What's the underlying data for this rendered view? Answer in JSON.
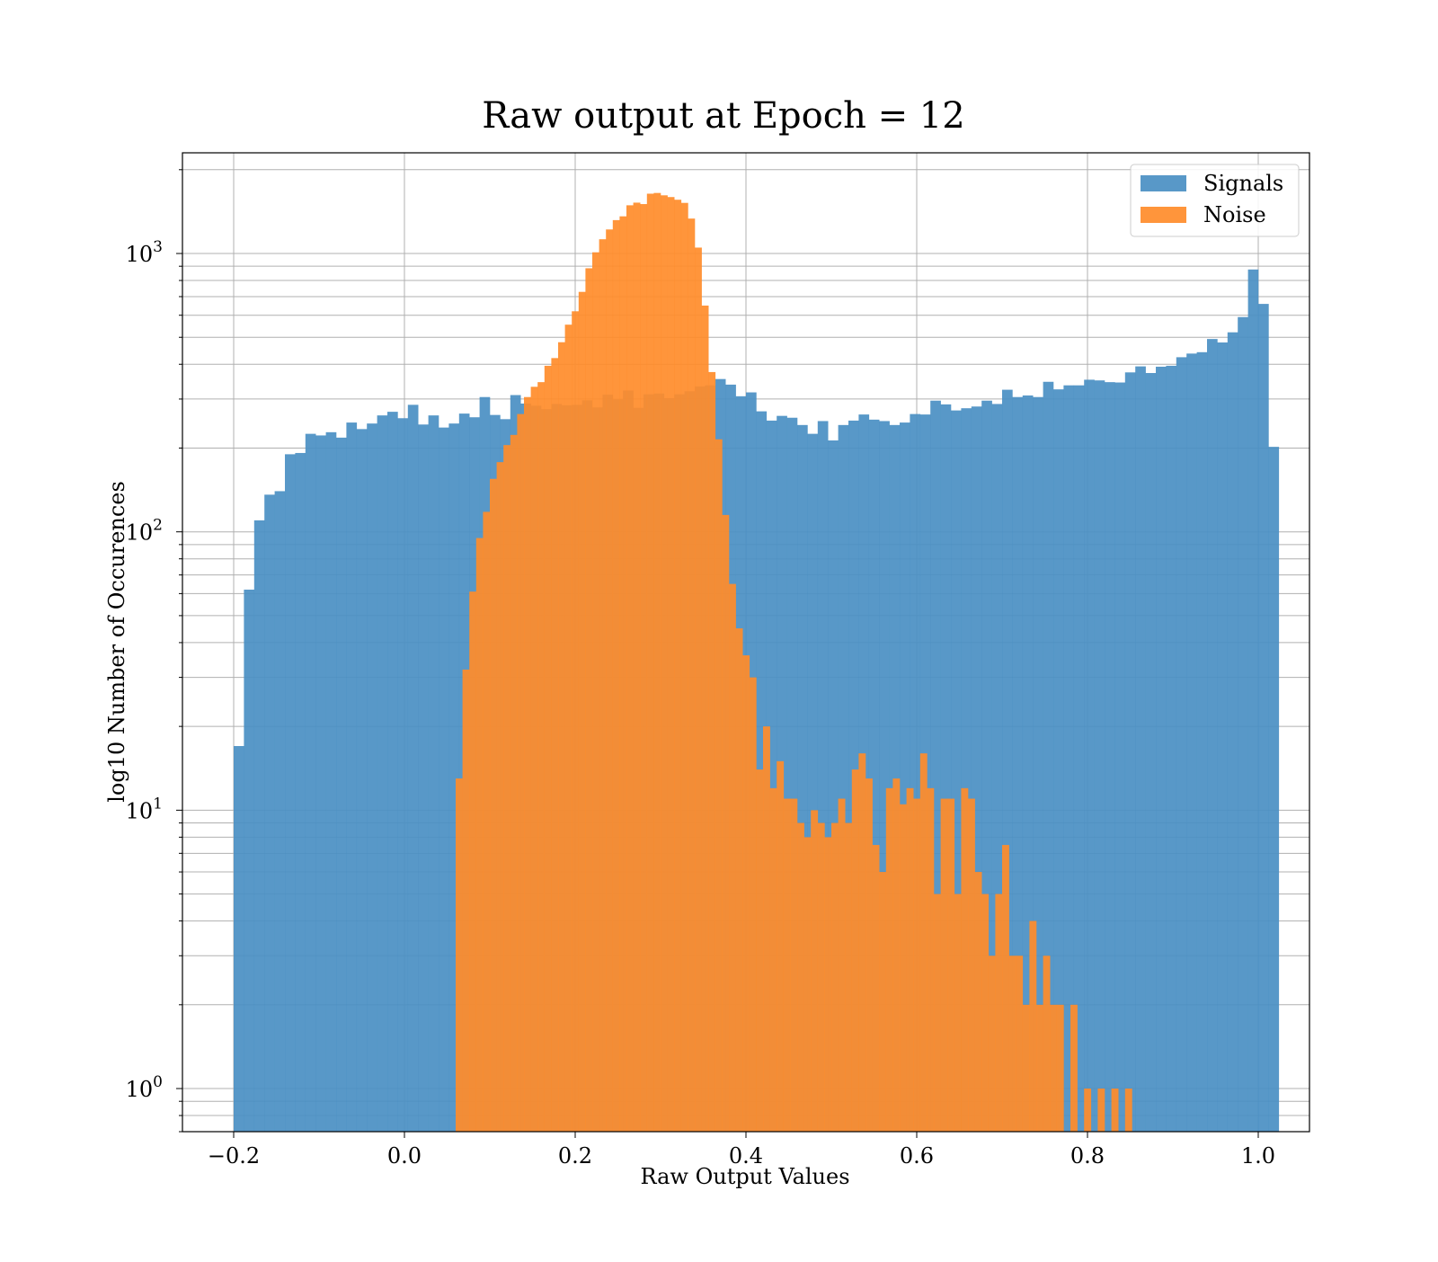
{
  "chart_data": {
    "type": "bar",
    "title": "Raw output at Epoch = 12",
    "xlabel": "Raw Output Values",
    "ylabel": "log10 Number of Occurences",
    "yscale": "log",
    "xlim": [
      -0.26,
      1.06
    ],
    "ylim": [
      0.7,
      2300
    ],
    "grid": true,
    "legend_position": "top-right",
    "x_ticks": [
      {
        "value": -0.2,
        "label": "−0.2"
      },
      {
        "value": 0.0,
        "label": "0.0"
      },
      {
        "value": 0.2,
        "label": "0.2"
      },
      {
        "value": 0.4,
        "label": "0.4"
      },
      {
        "value": 0.6,
        "label": "0.6"
      },
      {
        "value": 0.8,
        "label": "0.8"
      },
      {
        "value": 1.0,
        "label": "1.0"
      }
    ],
    "y_ticks": [
      {
        "value": 1,
        "base": "10",
        "exp": "0"
      },
      {
        "value": 10,
        "base": "10",
        "exp": "1"
      },
      {
        "value": 100,
        "base": "10",
        "exp": "2"
      },
      {
        "value": 1000,
        "base": "10",
        "exp": "3"
      }
    ],
    "series": [
      {
        "name": "Signals",
        "color": "#4a8fc3",
        "bin_start": -0.2,
        "bin_width": 0.012,
        "values": [
          17,
          62,
          110,
          136,
          140,
          190,
          192,
          225,
          222,
          228,
          218,
          247,
          234,
          245,
          262,
          270,
          256,
          286,
          243,
          262,
          237,
          245,
          266,
          258,
          305,
          263,
          254,
          310,
          289,
          284,
          276,
          288,
          285,
          286,
          297,
          280,
          311,
          299,
          322,
          279,
          312,
          314,
          302,
          312,
          320,
          333,
          336,
          354,
          338,
          307,
          317,
          271,
          251,
          261,
          257,
          242,
          225,
          250,
          213,
          242,
          251,
          264,
          253,
          250,
          242,
          247,
          265,
          264,
          296,
          287,
          273,
          278,
          282,
          296,
          288,
          324,
          305,
          309,
          305,
          346,
          325,
          336,
          336,
          352,
          350,
          345,
          344,
          374,
          393,
          372,
          392,
          395,
          424,
          437,
          442,
          493,
          479,
          521,
          591,
          876,
          659,
          202
        ]
      },
      {
        "name": "Noise",
        "color": "#ff8c2a",
        "bin_start": 0.06,
        "bin_width": 0.008,
        "values": [
          13,
          32,
          61,
          95,
          118,
          155,
          178,
          205,
          223,
          265,
          305,
          332,
          345,
          395,
          421,
          480,
          555,
          620,
          728,
          885,
          1010,
          1125,
          1220,
          1318,
          1360,
          1490,
          1523,
          1505,
          1640,
          1650,
          1618,
          1595,
          1560,
          1520,
          1335,
          1050,
          650,
          375,
          215,
          115,
          65,
          45,
          36,
          30,
          14,
          20,
          12,
          15,
          11,
          11,
          9,
          8,
          10,
          9,
          8,
          9,
          11,
          9,
          14,
          16,
          13,
          7.5,
          6,
          12,
          13,
          10.5,
          12,
          11,
          16,
          12,
          5,
          11,
          11,
          5,
          12,
          11,
          6,
          5,
          3,
          5,
          7.5,
          3,
          3,
          2,
          4,
          2,
          3,
          2,
          2,
          0,
          2,
          0,
          1,
          0,
          1,
          0,
          1,
          0,
          1
        ]
      }
    ]
  }
}
